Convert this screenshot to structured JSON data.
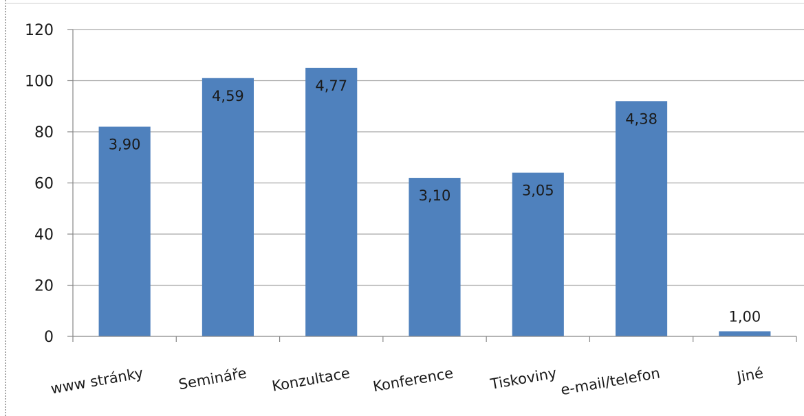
{
  "chart_data": {
    "type": "bar",
    "categories": [
      "www stránky",
      "Semináře",
      "Konzultace",
      "Konference",
      "Tiskoviny",
      "e-mail/telefon",
      "Jiné"
    ],
    "values": [
      82,
      101,
      105,
      62,
      64,
      92,
      2
    ],
    "data_labels": [
      "3,90",
      "4,59",
      "4,77",
      "3,10",
      "3,05",
      "4,38",
      "1,00"
    ],
    "yticks": [
      "0",
      "20",
      "40",
      "60",
      "80",
      "100",
      "120"
    ],
    "ylim": [
      0,
      120
    ],
    "title": "",
    "xlabel": "",
    "ylabel": "",
    "grid": true,
    "legend": "none",
    "bar_color": "#4f81bd",
    "grid_color": "#a6a6a6"
  }
}
